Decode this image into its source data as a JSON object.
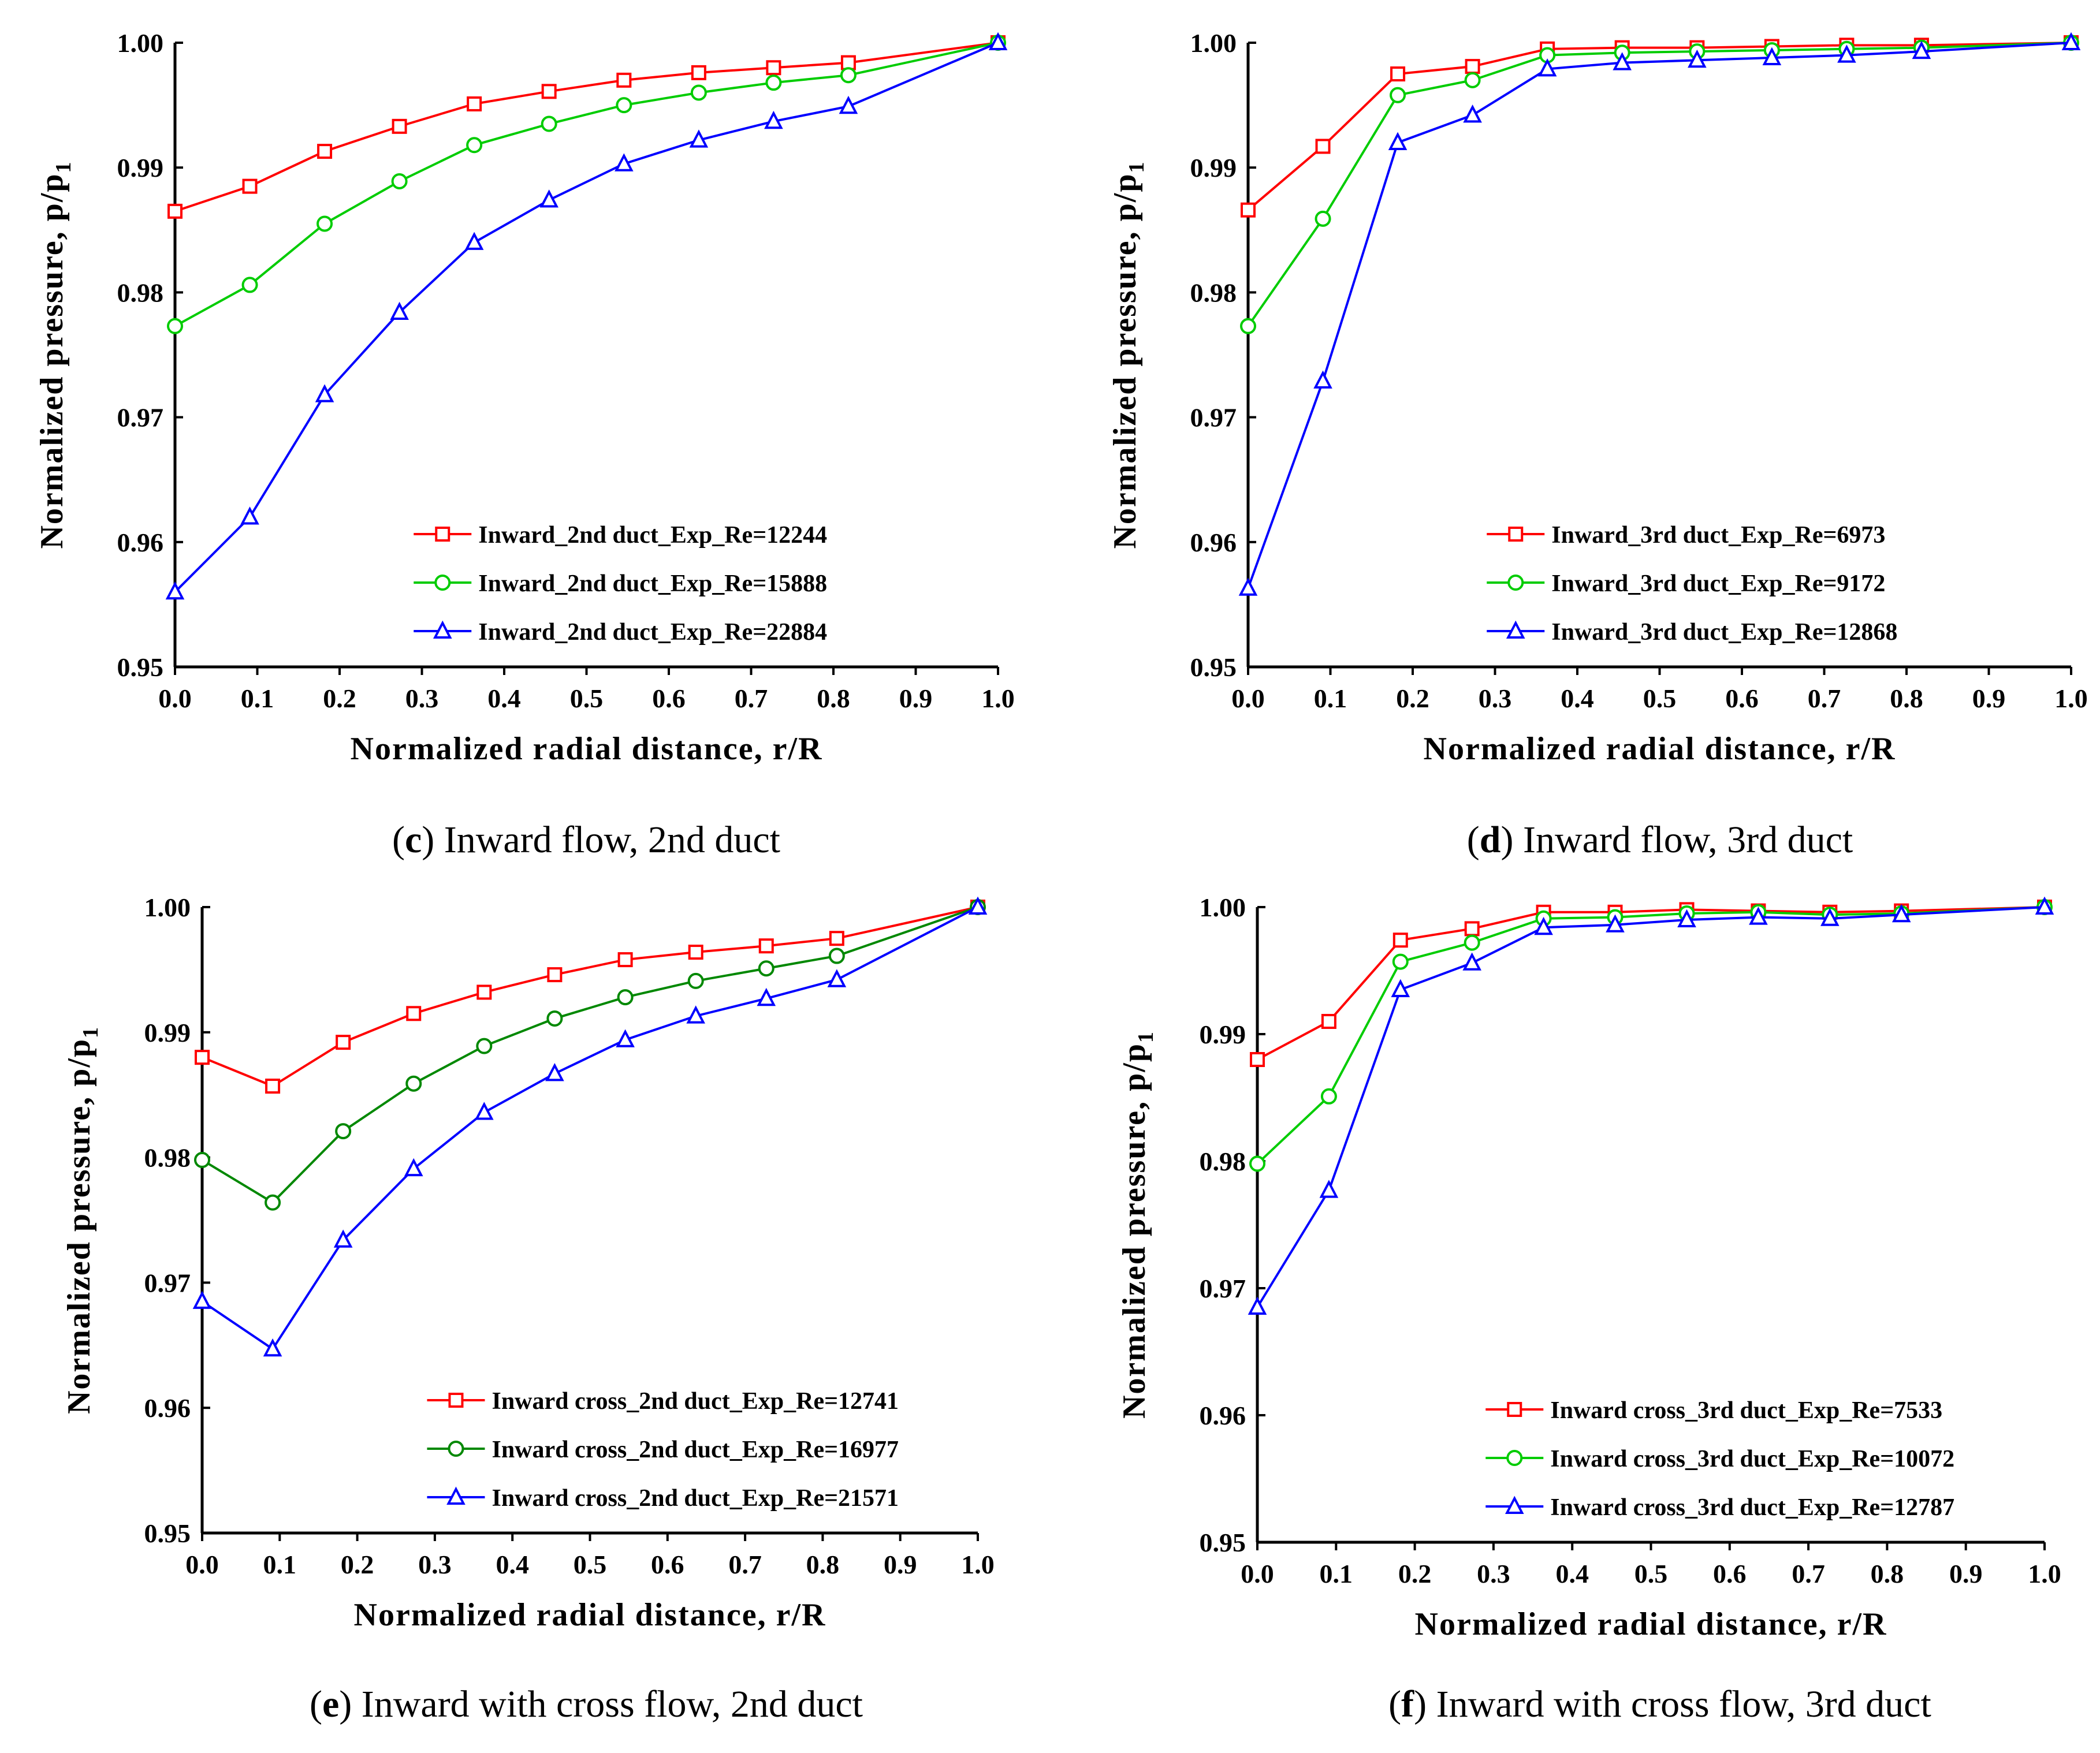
{
  "chart_data": [
    {
      "id": "c",
      "type": "line",
      "caption_letter": "c",
      "caption_text": "Inward flow, 2nd duct",
      "xlabel": "Normalized radial distance, r/R",
      "ylabel_main": "Normalized pressure, p/p",
      "ylabel_sub": "1",
      "xlim": [
        0,
        1
      ],
      "ylim": [
        0.95,
        1.0
      ],
      "xticks": [
        "0.0",
        "0.1",
        "0.2",
        "0.3",
        "0.4",
        "0.5",
        "0.6",
        "0.7",
        "0.8",
        "0.9",
        "1.0"
      ],
      "yticks": [
        "0.95",
        "0.96",
        "0.97",
        "0.98",
        "0.99",
        "1.00"
      ],
      "legend_position": "bottom-right",
      "x": [
        0,
        0.0909,
        0.1818,
        0.2727,
        0.3636,
        0.4545,
        0.5455,
        0.6364,
        0.7273,
        0.8182,
        1.0
      ],
      "series": [
        {
          "name": "Inward_2nd duct_Exp_Re=12244",
          "color": "#ff0000",
          "marker": "square",
          "values": [
            0.9865,
            0.9885,
            0.9913,
            0.9933,
            0.9951,
            0.9961,
            0.997,
            0.9976,
            0.998,
            0.9984,
            1.0
          ]
        },
        {
          "name": "Inward_2nd duct_Exp_Re=15888",
          "color": "#00cc00",
          "marker": "circle",
          "values": [
            0.9773,
            0.9806,
            0.9855,
            0.9889,
            0.9918,
            0.9935,
            0.995,
            0.996,
            0.9968,
            0.9974,
            1.0
          ]
        },
        {
          "name": "Inward_2nd duct_Exp_Re=22884",
          "color": "#0000ff",
          "marker": "triangle",
          "values": [
            0.956,
            0.962,
            0.9718,
            0.9784,
            0.984,
            0.9874,
            0.9903,
            0.9922,
            0.9937,
            0.9949,
            1.0
          ]
        }
      ]
    },
    {
      "id": "d",
      "type": "line",
      "caption_letter": "d",
      "caption_text": "Inward flow, 3rd duct",
      "xlabel": "Normalized radial distance, r/R",
      "ylabel_main": "Normalized pressure, p/p",
      "ylabel_sub": "1",
      "xlim": [
        0,
        1
      ],
      "ylim": [
        0.95,
        1.0
      ],
      "xticks": [
        "0.0",
        "0.1",
        "0.2",
        "0.3",
        "0.4",
        "0.5",
        "0.6",
        "0.7",
        "0.8",
        "0.9",
        "1.0"
      ],
      "yticks": [
        "0.95",
        "0.96",
        "0.97",
        "0.98",
        "0.99",
        "1.00"
      ],
      "legend_position": "bottom-right",
      "x": [
        0,
        0.0909,
        0.1818,
        0.2727,
        0.3636,
        0.4545,
        0.5455,
        0.6364,
        0.7273,
        0.8182,
        1.0
      ],
      "series": [
        {
          "name": "Inward_3rd duct_Exp_Re=6973",
          "color": "#ff0000",
          "marker": "square",
          "values": [
            0.9866,
            0.9917,
            0.9975,
            0.9981,
            0.9995,
            0.9996,
            0.9996,
            0.9997,
            0.9998,
            0.9998,
            1.0
          ]
        },
        {
          "name": "Inward_3rd duct_Exp_Re=9172",
          "color": "#00cc00",
          "marker": "circle",
          "values": [
            0.9773,
            0.9859,
            0.9958,
            0.997,
            0.999,
            0.9992,
            0.9993,
            0.9994,
            0.9995,
            0.9996,
            1.0
          ]
        },
        {
          "name": "Inward_3rd duct_Exp_Re=12868",
          "color": "#0000ff",
          "marker": "triangle",
          "values": [
            0.9563,
            0.9729,
            0.992,
            0.9942,
            0.9979,
            0.9984,
            0.9986,
            0.9988,
            0.999,
            0.9993,
            1.0
          ]
        }
      ]
    },
    {
      "id": "e",
      "type": "line",
      "caption_letter": "e",
      "caption_text": "Inward with cross flow, 2nd duct",
      "xlabel": "Normalized radial distance, r/R",
      "ylabel_main": "Normalized pressure, p/p",
      "ylabel_sub": "1",
      "xlim": [
        0,
        1
      ],
      "ylim": [
        0.95,
        1.0
      ],
      "xticks": [
        "0.0",
        "0.1",
        "0.2",
        "0.3",
        "0.4",
        "0.5",
        "0.6",
        "0.7",
        "0.8",
        "0.9",
        "1.0"
      ],
      "yticks": [
        "0.95",
        "0.96",
        "0.97",
        "0.98",
        "0.99",
        "1.00"
      ],
      "legend_position": "bottom-right",
      "x": [
        0,
        0.0909,
        0.1818,
        0.2727,
        0.3636,
        0.4545,
        0.5455,
        0.6364,
        0.7273,
        0.8182,
        1.0
      ],
      "series": [
        {
          "name": "Inward cross_2nd duct_Exp_Re=12741",
          "color": "#ff0000",
          "marker": "square",
          "values": [
            0.988,
            0.9857,
            0.9892,
            0.9915,
            0.9932,
            0.9946,
            0.9958,
            0.9964,
            0.9969,
            0.9975,
            1.0
          ]
        },
        {
          "name": "Inward cross_2nd duct_Exp_Re=16977",
          "color": "#008800",
          "marker": "circle",
          "values": [
            0.9798,
            0.9764,
            0.9821,
            0.9859,
            0.9889,
            0.9911,
            0.9928,
            0.9941,
            0.9951,
            0.9961,
            1.0
          ]
        },
        {
          "name": "Inward cross_2nd duct_Exp_Re=21571",
          "color": "#0000ff",
          "marker": "triangle",
          "values": [
            0.9685,
            0.9647,
            0.9734,
            0.9791,
            0.9836,
            0.9867,
            0.9894,
            0.9913,
            0.9927,
            0.9942,
            1.0
          ]
        }
      ]
    },
    {
      "id": "f",
      "type": "line",
      "caption_letter": "f",
      "caption_text": "Inward with cross flow, 3rd duct",
      "xlabel": "Normalized radial distance, r/R",
      "ylabel_main": "Normalized pressure, p/p",
      "ylabel_sub": "1",
      "xlim": [
        0,
        1
      ],
      "ylim": [
        0.95,
        1.0
      ],
      "xticks": [
        "0.0",
        "0.1",
        "0.2",
        "0.3",
        "0.4",
        "0.5",
        "0.6",
        "0.7",
        "0.8",
        "0.9",
        "1.0"
      ],
      "yticks": [
        "0.95",
        "0.96",
        "0.97",
        "0.98",
        "0.99",
        "1.00"
      ],
      "legend_position": "bottom-right",
      "x": [
        0,
        0.0909,
        0.1818,
        0.2727,
        0.3636,
        0.4545,
        0.5455,
        0.6364,
        0.7273,
        0.8182,
        1.0
      ],
      "series": [
        {
          "name": "Inward cross_3rd duct_Exp_Re=7533",
          "color": "#ff0000",
          "marker": "square",
          "values": [
            0.988,
            0.991,
            0.9974,
            0.9983,
            0.9996,
            0.9996,
            0.9998,
            0.9997,
            0.9996,
            0.9997,
            1.0
          ]
        },
        {
          "name": "Inward cross_3rd duct_Exp_Re=10072",
          "color": "#00cc00",
          "marker": "circle",
          "values": [
            0.9798,
            0.9851,
            0.9957,
            0.9972,
            0.9991,
            0.9992,
            0.9995,
            0.9996,
            0.9994,
            0.9995,
            1.0
          ]
        },
        {
          "name": "Inward cross_3rd duct_Exp_Re=12787",
          "color": "#0000ff",
          "marker": "triangle",
          "values": [
            0.9685,
            0.9777,
            0.9935,
            0.9956,
            0.9984,
            0.9986,
            0.999,
            0.9992,
            0.9991,
            0.9994,
            1.0
          ]
        }
      ]
    }
  ]
}
